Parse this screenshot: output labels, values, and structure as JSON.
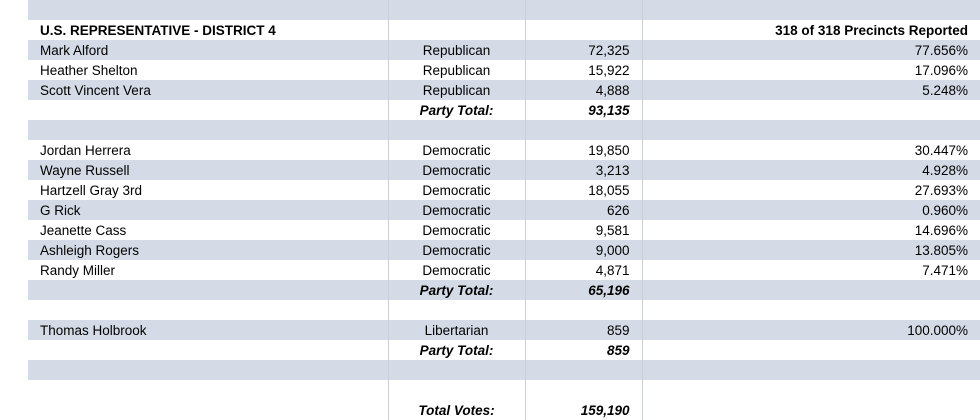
{
  "race": {
    "title": "U.S. REPRESENTATIVE - DISTRICT 4",
    "precincts": "318 of 318 Precincts Reported"
  },
  "republican": {
    "candidates": [
      {
        "name": "Mark Alford",
        "party": "Republican",
        "votes": "72,325",
        "pct": "77.656%"
      },
      {
        "name": "Heather Shelton",
        "party": "Republican",
        "votes": "15,922",
        "pct": "17.096%"
      },
      {
        "name": "Scott Vincent Vera",
        "party": "Republican",
        "votes": "4,888",
        "pct": "5.248%"
      }
    ],
    "total_label": "Party Total:",
    "total": "93,135"
  },
  "democratic": {
    "candidates": [
      {
        "name": "Jordan Herrera",
        "party": "Democratic",
        "votes": "19,850",
        "pct": "30.447%"
      },
      {
        "name": "Wayne Russell",
        "party": "Democratic",
        "votes": "3,213",
        "pct": "4.928%"
      },
      {
        "name": "Hartzell Gray 3rd",
        "party": "Democratic",
        "votes": "18,055",
        "pct": "27.693%"
      },
      {
        "name": "G Rick",
        "party": "Democratic",
        "votes": "626",
        "pct": "0.960%"
      },
      {
        "name": "Jeanette Cass",
        "party": "Democratic",
        "votes": "9,581",
        "pct": "14.696%"
      },
      {
        "name": "Ashleigh Rogers",
        "party": "Democratic",
        "votes": "9,000",
        "pct": "13.805%"
      },
      {
        "name": "Randy Miller",
        "party": "Democratic",
        "votes": "4,871",
        "pct": "7.471%"
      }
    ],
    "total_label": "Party Total:",
    "total": "65,196"
  },
  "libertarian": {
    "candidates": [
      {
        "name": "Thomas Holbrook",
        "party": "Libertarian",
        "votes": "859",
        "pct": "100.000%"
      }
    ],
    "total_label": "Party Total:",
    "total": "859"
  },
  "grand_total": {
    "label": "Total Votes:",
    "value": "159,190"
  }
}
